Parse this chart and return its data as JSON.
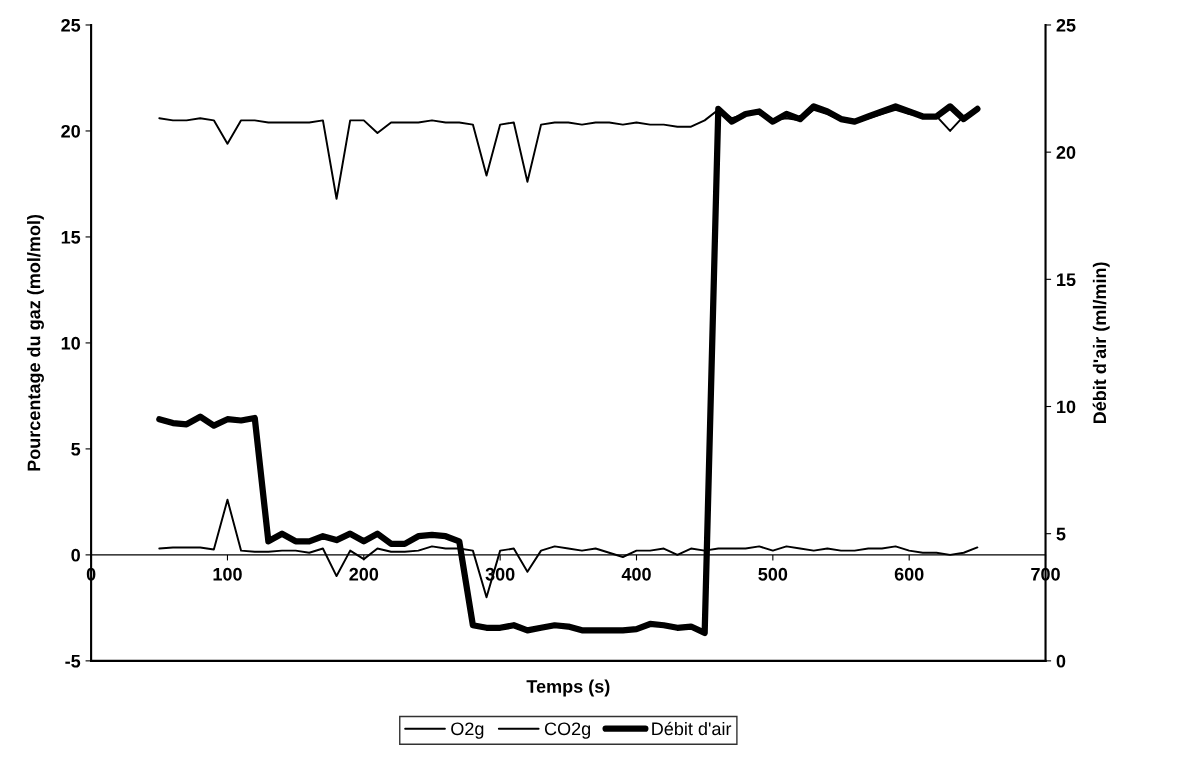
{
  "chart_data": {
    "type": "line",
    "xlabel": "Temps (s)",
    "ylabel": "Pourcentage du gaz (mol/mol)",
    "y2label": "Débit d'air (ml/min)",
    "x": [
      50,
      60,
      70,
      80,
      90,
      100,
      110,
      120,
      130,
      140,
      150,
      160,
      170,
      180,
      190,
      200,
      210,
      220,
      230,
      240,
      250,
      260,
      270,
      280,
      290,
      300,
      310,
      320,
      330,
      340,
      350,
      360,
      370,
      380,
      390,
      400,
      410,
      420,
      430,
      440,
      450,
      460,
      470,
      480,
      490,
      500,
      510,
      520,
      530,
      540,
      550,
      560,
      570,
      580,
      590,
      600,
      610,
      620,
      630,
      640,
      650
    ],
    "xlim": [
      0,
      700
    ],
    "xticks": [
      0,
      100,
      200,
      300,
      400,
      500,
      600,
      700
    ],
    "ylim": [
      -5,
      25
    ],
    "yticks": [
      -5,
      0,
      5,
      10,
      15,
      20,
      25
    ],
    "y2lim": [
      0,
      25
    ],
    "y2ticks": [
      0,
      5,
      10,
      15,
      20,
      25
    ],
    "grid": false,
    "legend": "bottom",
    "marker": "none",
    "line_style": "solid",
    "series": [
      {
        "name": "O2g",
        "color": "#000000",
        "values": [
          20.6,
          20.5,
          20.5,
          20.6,
          20.5,
          19.4,
          20.5,
          20.5,
          20.4,
          20.4,
          20.4,
          20.4,
          20.5,
          16.8,
          20.5,
          20.5,
          19.9,
          20.4,
          20.4,
          20.4,
          20.5,
          20.4,
          20.4,
          20.3,
          17.9,
          20.3,
          20.4,
          17.6,
          20.3,
          20.4,
          20.4,
          20.3,
          20.4,
          20.4,
          20.3,
          20.4,
          20.3,
          20.3,
          20.2,
          20.2,
          20.5,
          21.0,
          20.6,
          20.8,
          20.8,
          20.5,
          20.6,
          20.5,
          21.0,
          20.8,
          20.5,
          20.4,
          20.6,
          20.8,
          21.0,
          20.8,
          20.7,
          20.7,
          20.0,
          20.7,
          21.0
        ]
      },
      {
        "name": "CO2g",
        "color": "#000000",
        "values": [
          0.3,
          0.35,
          0.35,
          0.35,
          0.25,
          2.6,
          0.2,
          0.15,
          0.15,
          0.2,
          0.2,
          0.1,
          0.3,
          -1.0,
          0.2,
          -0.2,
          0.3,
          0.15,
          0.15,
          0.2,
          0.4,
          0.3,
          0.3,
          0.2,
          -2.0,
          0.2,
          0.3,
          -0.8,
          0.2,
          0.4,
          0.3,
          0.2,
          0.3,
          0.1,
          -0.1,
          0.2,
          0.2,
          0.3,
          0.0,
          0.3,
          0.2,
          0.3,
          0.3,
          0.3,
          0.4,
          0.2,
          0.4,
          0.3,
          0.2,
          0.3,
          0.2,
          0.2,
          0.3,
          0.3,
          0.4,
          0.2,
          0.1,
          0.1,
          0.0,
          0.1,
          0.35
        ]
      },
      {
        "name": "Débit d'air",
        "color": "#000000",
        "axis": "y2",
        "values": [
          9.5,
          9.35,
          9.3,
          9.6,
          9.25,
          9.5,
          9.45,
          9.55,
          4.7,
          5.0,
          4.7,
          4.7,
          4.9,
          4.75,
          5.0,
          4.7,
          5.0,
          4.6,
          4.6,
          4.9,
          4.95,
          4.9,
          4.7,
          1.4,
          1.3,
          1.3,
          1.4,
          1.2,
          1.3,
          1.4,
          1.35,
          1.2,
          1.2,
          1.2,
          1.2,
          1.25,
          1.45,
          1.4,
          1.3,
          1.35,
          1.1,
          21.7,
          21.2,
          21.5,
          21.6,
          21.2,
          21.5,
          21.3,
          21.8,
          21.6,
          21.3,
          21.2,
          21.4,
          21.6,
          21.8,
          21.6,
          21.4,
          21.4,
          21.8,
          21.3,
          21.7
        ]
      }
    ]
  }
}
